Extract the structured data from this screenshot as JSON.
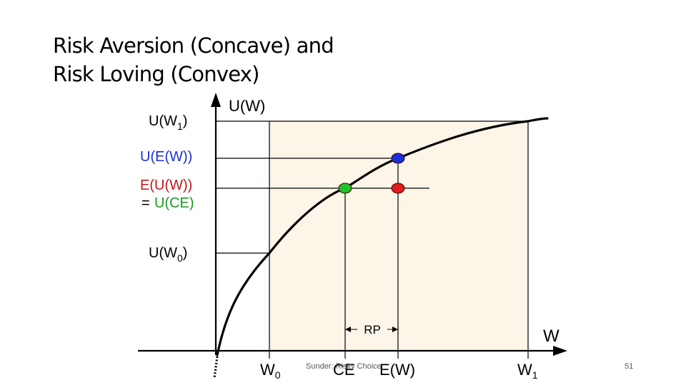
{
  "slide": {
    "title_line1": "Risk Aversion (Concave) and",
    "title_line2": "Risk Loving (Convex)",
    "footer": "Sunder: Risky Choice",
    "page_number": "51"
  },
  "figure": {
    "y_axis_label": "U(W)",
    "x_axis_label": "W",
    "y_labels": {
      "u_w1": "U(W",
      "u_w1_sub": "1",
      "u_ew": "U(E(W))",
      "e_uw": "E(U(W))",
      "eq": "=",
      "u_ce": "U(CE)",
      "u_w0": "U(W",
      "u_w0_sub": "0"
    },
    "x_labels": {
      "w0": "W",
      "w0_sub": "0",
      "ce": "CE",
      "ew": "E(W)",
      "w1": "W",
      "w1_sub": "1"
    },
    "rp_label": "RP",
    "colors": {
      "panel_fill": "#fcf5e8",
      "curve": "#000000",
      "dot_blue": "#1530d8",
      "dot_red": "#dd1c1c",
      "dot_green": "#22c22a",
      "label_red": "#c0161b",
      "label_green": "#1a9a20"
    }
  }
}
